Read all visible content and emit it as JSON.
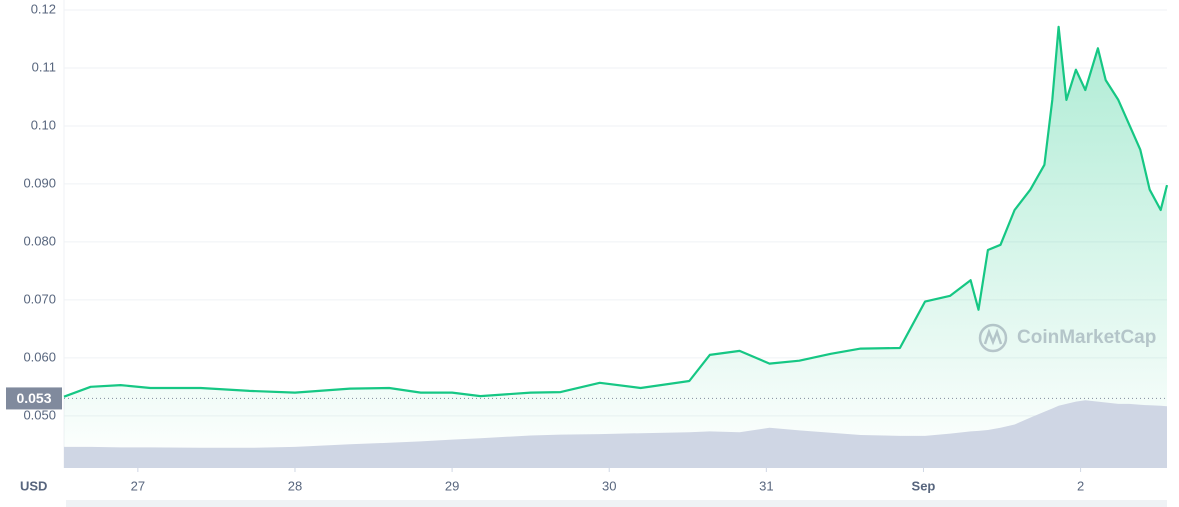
{
  "chart_data": {
    "type": "line",
    "axis_label": "USD",
    "watermark": "CoinMarketCap",
    "current_price": 0.053,
    "x": [
      26.53,
      26.7,
      26.89,
      27.08,
      27.4,
      27.71,
      28.0,
      28.35,
      28.6,
      28.8,
      29.0,
      29.18,
      29.5,
      29.69,
      29.94,
      30.2,
      30.51,
      30.64,
      30.83,
      31.02,
      31.21,
      31.41,
      31.6,
      31.85,
      31.92,
      32.01,
      32.17,
      32.3,
      32.35,
      32.41,
      32.49,
      32.58,
      32.68,
      32.77,
      32.82,
      32.86,
      32.91,
      32.97,
      33.03,
      33.11,
      33.16,
      33.24,
      33.31,
      33.38,
      33.44,
      33.51,
      33.55
    ],
    "series": [
      {
        "color": "#16c784",
        "values": [
          0.0533,
          0.055,
          0.0553,
          0.0548,
          0.0548,
          0.0543,
          0.054,
          0.0547,
          0.0548,
          0.054,
          0.054,
          0.0534,
          0.054,
          0.0541,
          0.0557,
          0.0548,
          0.056,
          0.0605,
          0.0612,
          0.059,
          0.0595,
          0.0607,
          0.0616,
          0.0617,
          0.0652,
          0.0697,
          0.0707,
          0.0734,
          0.0683,
          0.0786,
          0.0795,
          0.0855,
          0.089,
          0.0933,
          0.1045,
          0.1171,
          0.1045,
          0.1097,
          0.1062,
          0.1134,
          0.1079,
          0.1045,
          0.1002,
          0.0959,
          0.089,
          0.0855,
          0.0898
        ]
      },
      {
        "color": "#cfd6e4",
        "axis": "y2",
        "values": [
          4.6,
          4.6,
          4.5,
          4.5,
          4.4,
          4.4,
          4.6,
          5.2,
          5.5,
          5.8,
          6.2,
          6.5,
          7.1,
          7.3,
          7.4,
          7.6,
          7.8,
          8.0,
          7.8,
          8.8,
          8.2,
          7.7,
          7.2,
          7.0,
          7.0,
          7.0,
          7.5,
          8.0,
          8.1,
          8.3,
          8.8,
          9.5,
          11.0,
          12.3,
          13.0,
          13.6,
          14.0,
          14.5,
          14.8,
          14.5,
          14.3,
          14.0,
          14.0,
          13.8,
          13.7,
          13.6,
          13.5
        ]
      }
    ],
    "xlim": [
      26.53,
      33.55
    ],
    "xticks": [
      27,
      28,
      29,
      30,
      31,
      {
        "value": 32,
        "label": "Sep"
      },
      {
        "value": 33,
        "label": "2"
      }
    ],
    "ylim": [
      0.041,
      0.12
    ],
    "yticks": [
      0.12,
      0.11,
      {
        "value": 0.1,
        "label": "0.10"
      },
      {
        "value": 0.09,
        "label": "0.090"
      },
      {
        "value": 0.08,
        "label": "0.080"
      },
      {
        "value": 0.07,
        "label": "0.070"
      },
      {
        "value": 0.06,
        "label": "0.060"
      },
      {
        "value": 0.05,
        "label": "0.050"
      }
    ],
    "y2lim": [
      0,
      100
    ],
    "grid": true
  }
}
